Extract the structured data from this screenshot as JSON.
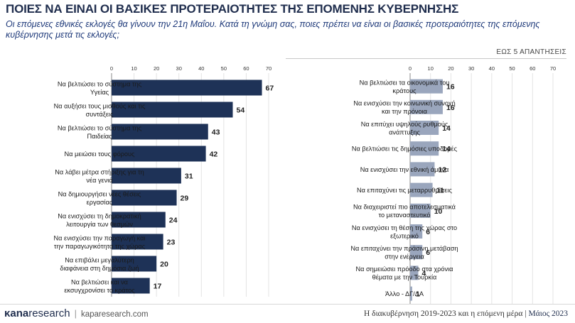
{
  "title": "ΠΟΙΕΣ ΝΑ ΕΙΝΑΙ ΟΙ ΒΑΣΙΚΕΣ ΠΡΟΤΕΡΑΙΟΤΗΤΕΣ ΤΗΣ ΕΠΟΜΕΝΗΣ ΚΥΒΕΡΝΗΣΗΣ",
  "subtitle": "Οι επόμενες εθνικές εκλογές θα γίνουν την 21η Μαΐου. Κατά τη γνώμη σας, ποιες πρέπει να είναι οι βασικές προτεραιότητες της επόμενης κυβέρνησης μετά τις εκλογές;",
  "note": "ΕΩΣ 5 ΑΠΑΝΤΗΣΕΙΣ",
  "footer": {
    "logo_main": "κana",
    "logo_rest": "research",
    "logo_sep": "|",
    "url": "kaparesearch.com",
    "right_text": "Η διακυβέρνηση 2019-2023 και η επόμενη μέρα |",
    "right_date": "Μάιος 2023"
  },
  "colors": {
    "dark": "#1e3257",
    "light": "#9aa6bd",
    "title": "#1f2d4d"
  },
  "chart_data": [
    {
      "type": "bar",
      "orientation": "horizontal",
      "xlim": [
        0,
        70
      ],
      "ticks": [
        0,
        10,
        20,
        30,
        40,
        50,
        60,
        70
      ],
      "categories": [
        [
          "Να βελτιώσει το σύστημα της",
          "Υγείας"
        ],
        [
          "Να αυξήσει τους μισθούς και τις",
          "συντάξεις"
        ],
        [
          "Να βελτιώσει το σύστημα της",
          "Παιδείας"
        ],
        [
          "Να μειώσει τους φόρους"
        ],
        [
          "Να λάβει μέτρα στήριξης για τη",
          "νέα γενιά"
        ],
        [
          "Να δημιουργήσει νέες θέσεις",
          "εργασίας"
        ],
        [
          "Να ενισχύσει τη δημοκρατική",
          "λειτουργία των θεσμών"
        ],
        [
          "Να ενισχύσει την παραγωγή και",
          "την παραγωγικότητα της χώρας"
        ],
        [
          "Να επιβάλει μεγαλύτερη",
          "διαφάνεια στη δημόσια ζωή"
        ],
        [
          "Να βελτιώσει και να",
          "εκσυγχρονίσει το κράτος"
        ]
      ],
      "values": [
        67,
        54,
        43,
        42,
        31,
        29,
        24,
        23,
        20,
        17
      ]
    },
    {
      "type": "bar",
      "orientation": "horizontal",
      "xlim": [
        0,
        70
      ],
      "ticks": [
        0,
        10,
        20,
        30,
        40,
        50,
        60,
        70
      ],
      "categories": [
        [
          "Να βελτιώσει τα οικονομικά του",
          "κράτους"
        ],
        [
          "Να ενισχύσει την κοινωνική συνοχή",
          "και την πρόνοια"
        ],
        [
          "Να επιτύχει υψηλούς ρυθμούς",
          "ανάπτυξης"
        ],
        [
          "Να βελτιώσει τις δημόσιες υποδομές"
        ],
        [
          "Να ενισχύσει την εθνική άμυνα"
        ],
        [
          "Να επιταχύνει τις μεταρρυθμίσεις"
        ],
        [
          "Να διαχειριστεί πιο αποτελεσματικά",
          "το μεταναστευτικό"
        ],
        [
          "Να ενισχύσει τη θέση της χώρας στο",
          "εξωτερικό"
        ],
        [
          "Να επιταχύνει την πράσινη μετάβαση",
          "στην ενέργεια"
        ],
        [
          "Να σημειώσει πρόοδο στα χρόνια",
          "θέματα με την Τουρκία"
        ],
        [
          "Άλλο - ΔΓ/ΔΑ"
        ]
      ],
      "values": [
        16,
        16,
        14,
        14,
        12,
        11,
        10,
        6,
        6,
        4,
        1
      ]
    }
  ]
}
